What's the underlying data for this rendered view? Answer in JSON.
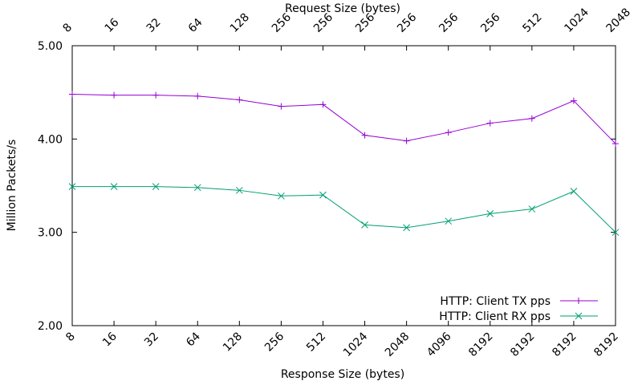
{
  "chart_data": {
    "type": "line",
    "xlabel": "Response Size (bytes)",
    "x2label": "Request Size (bytes)",
    "ylabel": "Million Packets/s",
    "ylim": [
      2.0,
      5.0
    ],
    "yticks": [
      "2.00",
      "3.00",
      "4.00",
      "5.00"
    ],
    "categories": [
      "8",
      "16",
      "32",
      "64",
      "128",
      "256",
      "512",
      "1024",
      "2048",
      "4096",
      "8192",
      "8192",
      "8192",
      "8192"
    ],
    "categories_top": [
      "8",
      "16",
      "32",
      "64",
      "128",
      "256",
      "256",
      "256",
      "256",
      "256",
      "256",
      "512",
      "1024",
      "2048"
    ],
    "grid": false,
    "legend_position": "bottom-right",
    "series": [
      {
        "name": "HTTP: Client TX pps",
        "color": "#9400d3",
        "marker": "plus",
        "values": [
          4.48,
          4.47,
          4.47,
          4.46,
          4.42,
          4.35,
          4.37,
          4.04,
          3.98,
          4.07,
          4.17,
          4.22,
          4.41,
          3.95
        ]
      },
      {
        "name": "HTTP: Client RX pps",
        "color": "#009e73",
        "marker": "x",
        "values": [
          3.49,
          3.49,
          3.49,
          3.48,
          3.45,
          3.39,
          3.4,
          3.08,
          3.05,
          3.12,
          3.2,
          3.25,
          3.44,
          3.0
        ]
      }
    ]
  }
}
